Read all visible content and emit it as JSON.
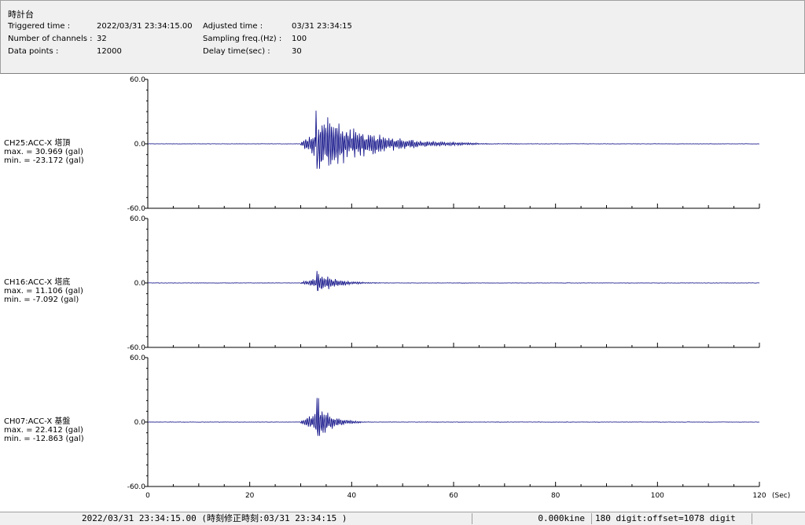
{
  "header": {
    "title": "時計台",
    "triggered_label": "Triggered time :",
    "triggered_value": "2022/03/31 23:34:15.00",
    "channels_label": "Number of channels :",
    "channels_value": "32",
    "points_label": "Data points :",
    "points_value": "12000",
    "adjusted_label": "Adjusted time :",
    "adjusted_value": "03/31 23:34:15",
    "sampling_label": "Sampling freq.(Hz) :",
    "sampling_value": "100",
    "delay_label": "Delay time(sec) :",
    "delay_value": "30"
  },
  "chart_data": {
    "type": "line",
    "xlim": [
      0,
      120
    ],
    "x_ticks": [
      "0",
      "20",
      "40",
      "60",
      "80",
      "100",
      "120"
    ],
    "x_unit": "(Sec)",
    "ylim": [
      -60,
      60
    ],
    "y_tick_labels": [
      "60.0",
      "0.0",
      "-60.0"
    ],
    "line_color": "#000080",
    "series": [
      {
        "name": "CH25:ACC-X 塔頂",
        "max_text": "max. = 30.969 (gal)",
        "min_text": "min. = -23.172 (gal)",
        "max": 30.969,
        "min": -23.172,
        "onset_sec": 30,
        "peak_sec": 33.0,
        "decay_end_sec": 65
      },
      {
        "name": "CH16:ACC-X 塔底",
        "max_text": "max. = 11.106 (gal)",
        "min_text": "min. = -7.092 (gal)",
        "max": 11.106,
        "min": -7.092,
        "onset_sec": 30,
        "peak_sec": 33.2,
        "decay_end_sec": 45
      },
      {
        "name": "CH07:ACC-X 基盤",
        "max_text": "max. = 22.412 (gal)",
        "min_text": "min. = -12.863 (gal)",
        "max": 22.412,
        "min": -12.863,
        "onset_sec": 30,
        "peak_sec": 33.2,
        "decay_end_sec": 42
      }
    ]
  },
  "statusbar": {
    "time_text": "2022/03/31 23:34:15.00  (時刻修正時刻:03/31 23:34:15  )",
    "kine_text": "0.000kine",
    "digit_text": "180 digit:offset=1078 digit"
  }
}
